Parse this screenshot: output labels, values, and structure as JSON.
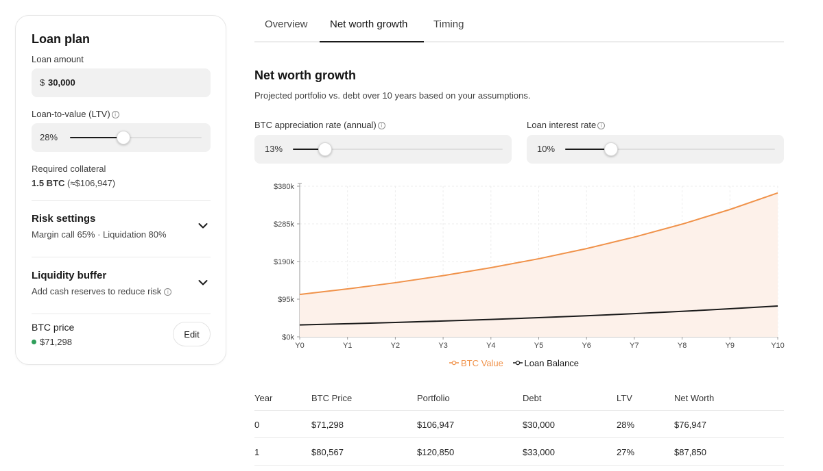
{
  "sidebar": {
    "title": "Loan plan",
    "loan_amount_label": "Loan amount",
    "loan_currency": "$",
    "loan_amount_value": "30,000",
    "ltv_label": "Loan-to-value (LTV)",
    "ltv_value": "28%",
    "ltv_level": 0.28,
    "collateral_label": "Required collateral",
    "collateral_btc": "1.5 BTC",
    "collateral_usd": "(≈$106,947)",
    "risk_title": "Risk settings",
    "risk_sub": "Margin call 65% · Liquidation 80%",
    "buffer_title": "Liquidity buffer",
    "buffer_sub": "Add cash reserves to reduce risk",
    "btc_price_label": "BTC price",
    "btc_price_value": "$71,298",
    "edit_label": "Edit",
    "status_color": "#2f9e5a"
  },
  "tabs": [
    {
      "label": "Overview"
    },
    {
      "label": "Net worth growth"
    },
    {
      "label": "Timing"
    }
  ],
  "main": {
    "title": "Net worth growth",
    "subtitle": "Projected portfolio vs. debt over 10 years based on your assumptions.",
    "appreciation_label": "BTC appreciation rate (annual)",
    "appreciation_value": "13%",
    "appreciation_level": 0.13,
    "interest_label": "Loan interest rate",
    "interest_value": "10%",
    "interest_level": 0.1
  },
  "chart_data": {
    "type": "area",
    "x": [
      "Y0",
      "Y1",
      "Y2",
      "Y3",
      "Y4",
      "Y5",
      "Y6",
      "Y7",
      "Y8",
      "Y9",
      "Y10"
    ],
    "yticks": [
      "$0k",
      "$95k",
      "$190k",
      "$285k",
      "$380k"
    ],
    "ylim": [
      0,
      380000
    ],
    "series": [
      {
        "name": "BTC Value",
        "color": "#f0924a",
        "fill": "#fdf1ea",
        "values": [
          106947,
          120850,
          136561,
          154314,
          174375,
          197043,
          222659,
          251604,
          284313,
          321274,
          363000
        ]
      },
      {
        "name": "Loan Balance",
        "color": "#1a1a1a",
        "values": [
          30000,
          33000,
          36300,
          39930,
          43923,
          48315,
          53147,
          58462,
          64308,
          70738,
          77812
        ]
      }
    ],
    "grid": true,
    "legend": "bottom"
  },
  "table": {
    "headers": [
      "Year",
      "BTC Price",
      "Portfolio",
      "Debt",
      "LTV",
      "Net Worth"
    ],
    "rows": [
      [
        "0",
        "$71,298",
        "$106,947",
        "$30,000",
        "28%",
        "$76,947"
      ],
      [
        "1",
        "$80,567",
        "$120,850",
        "$33,000",
        "27%",
        "$87,850"
      ]
    ]
  }
}
